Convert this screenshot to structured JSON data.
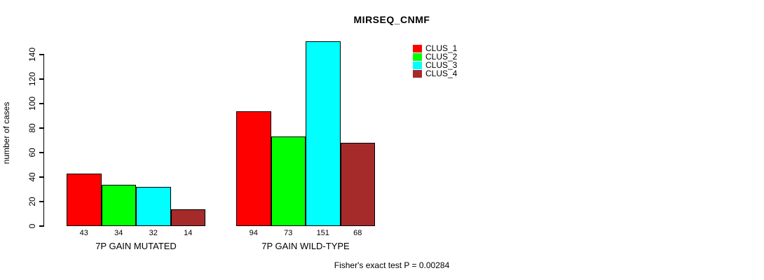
{
  "chart_data": {
    "type": "bar",
    "title": "MIRSEQ_CNMF",
    "xlabel": "",
    "ylabel": "number of cases",
    "categories": [
      "7P GAIN MUTATED",
      "7P GAIN WILD-TYPE"
    ],
    "series": [
      {
        "name": "CLUS_1",
        "color": "#FF0000",
        "values": [
          43,
          94
        ]
      },
      {
        "name": "CLUS_2",
        "color": "#00FF00",
        "values": [
          34,
          73
        ]
      },
      {
        "name": "CLUS_3",
        "color": "#00FFFF",
        "values": [
          32,
          151
        ]
      },
      {
        "name": "CLUS_4",
        "color": "#A52A2A",
        "values": [
          14,
          68
        ]
      }
    ],
    "bar_value_labels_shown": true,
    "y_ticks": [
      0,
      20,
      40,
      60,
      80,
      100,
      120,
      140
    ],
    "ylim": [
      0,
      140
    ],
    "grid": false,
    "legend_position": "top-right",
    "annotation": "Fisher's exact test P = 0.00284"
  }
}
